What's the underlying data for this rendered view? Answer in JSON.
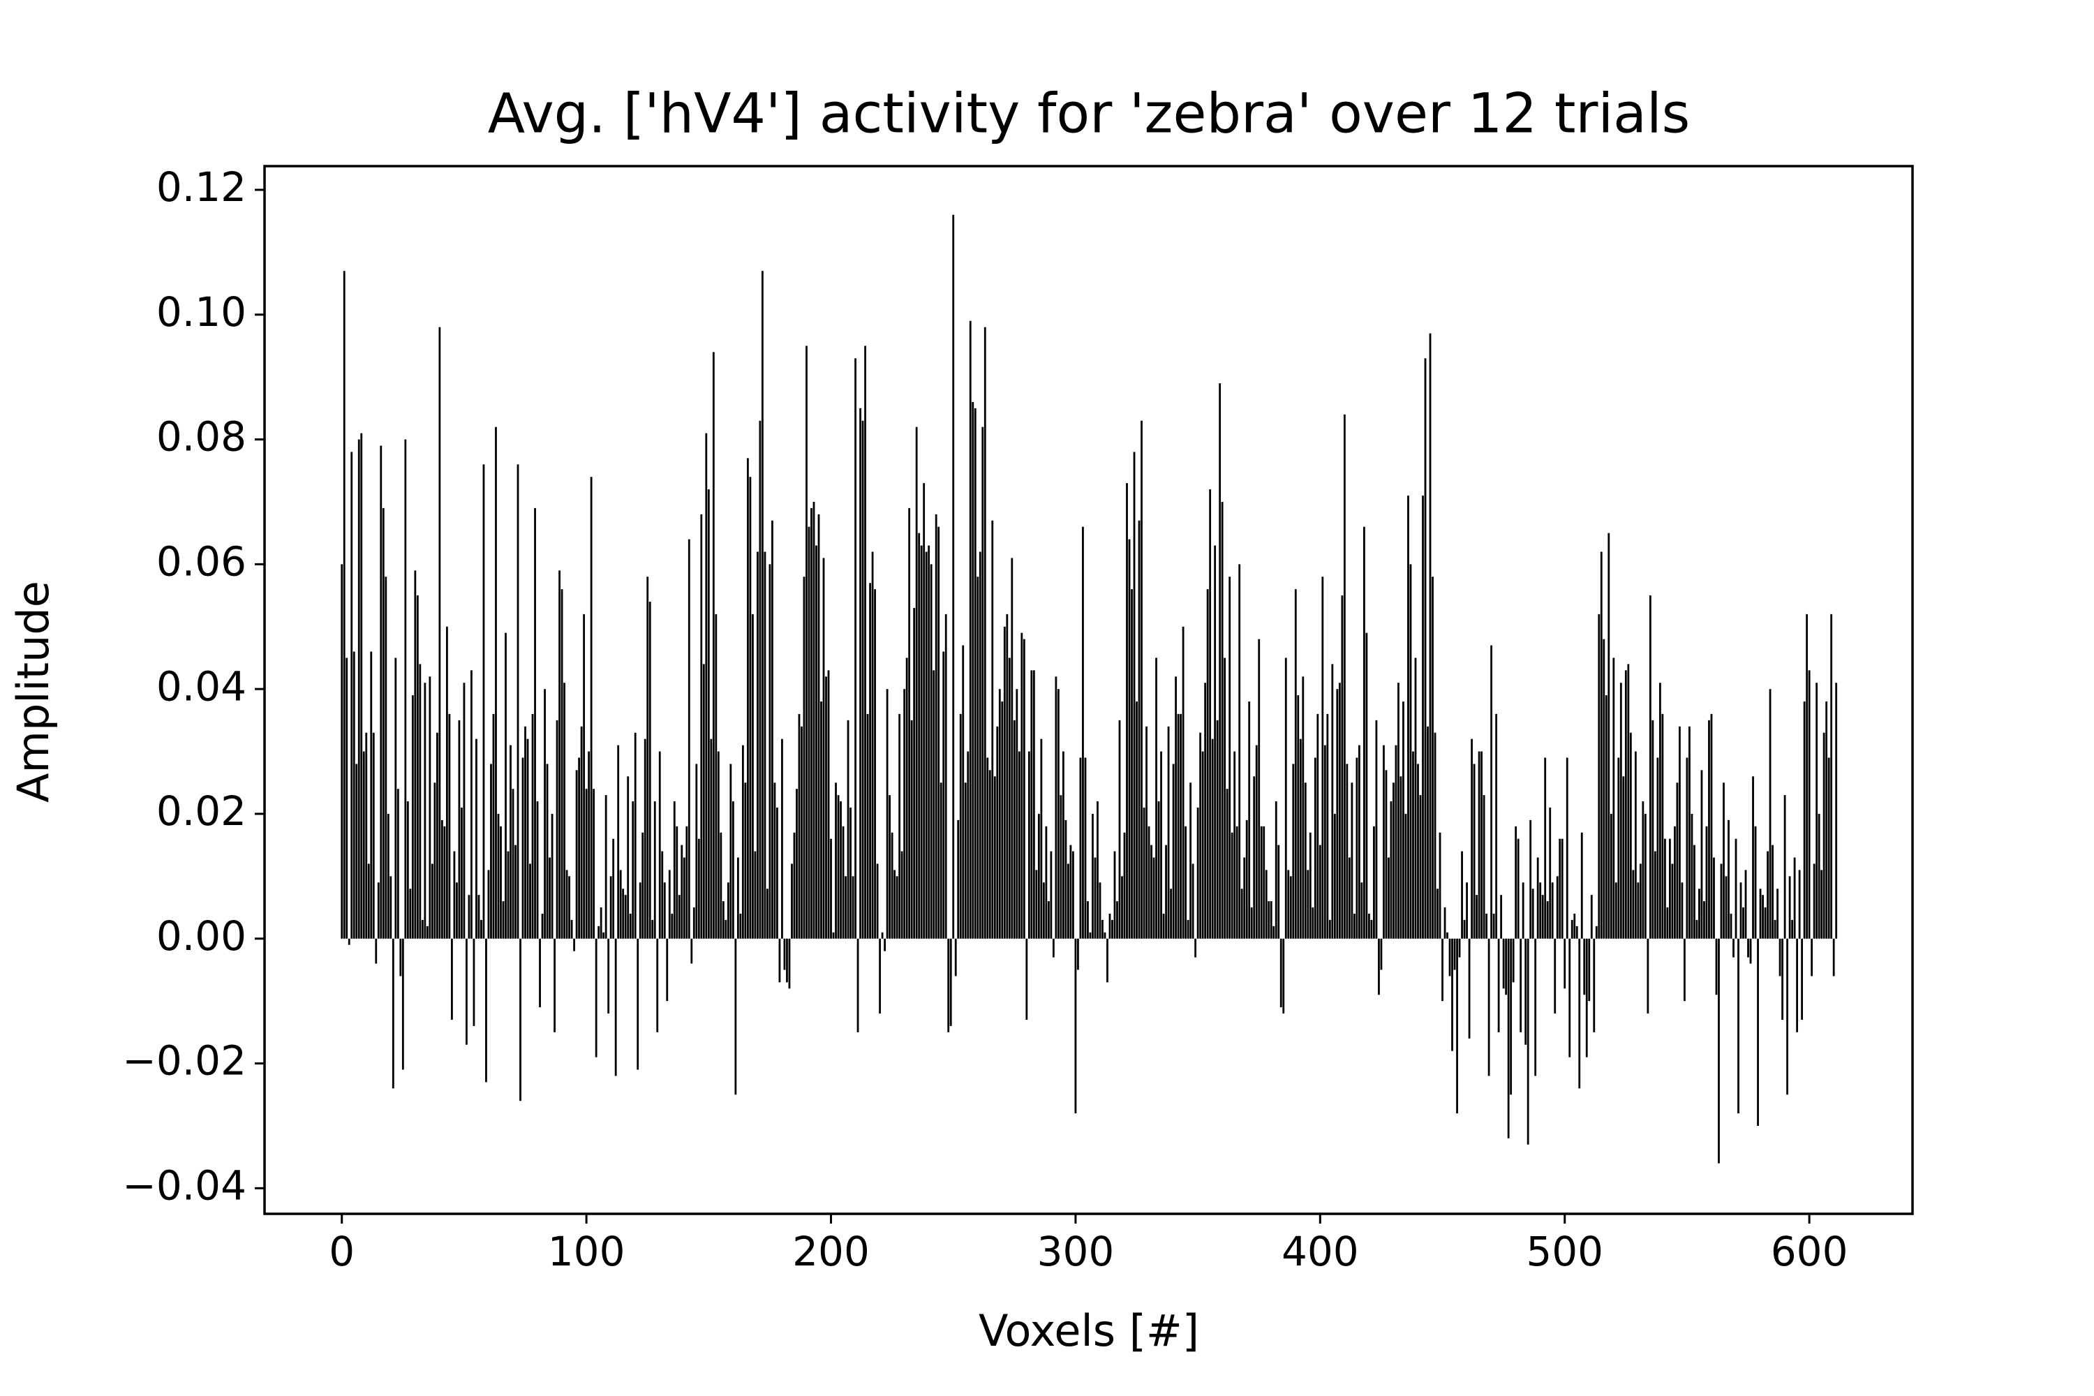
{
  "chart_data": {
    "type": "bar",
    "title": "Avg. ['hV4'] activity for 'zebra' over 12 trials",
    "xlabel": "Voxels [#]",
    "ylabel": "Amplitude",
    "color": "#000000",
    "xlim": [
      -31.6,
      642.2
    ],
    "ylim": [
      -0.0441,
      0.1238
    ],
    "xticks": [
      0,
      100,
      200,
      300,
      400,
      500,
      600
    ],
    "yticks": [
      {
        "value": -0.04,
        "label": "−0.04"
      },
      {
        "value": -0.02,
        "label": "−0.02"
      },
      {
        "value": 0,
        "label": "0.00"
      },
      {
        "value": 0.02,
        "label": "0.02"
      },
      {
        "value": 0.04,
        "label": "0.04"
      },
      {
        "value": 0.06,
        "label": "0.06"
      },
      {
        "value": 0.08,
        "label": "0.08"
      },
      {
        "value": 0.1,
        "label": "0.10"
      },
      {
        "value": 0.12,
        "label": "0.12"
      }
    ],
    "x": [
      0,
      1,
      2,
      3,
      4,
      5,
      6,
      7,
      8,
      9,
      10,
      11,
      12,
      13,
      14,
      15,
      16,
      17,
      18,
      19,
      20,
      21,
      22,
      23,
      24,
      25,
      26,
      27,
      28,
      29,
      30,
      31,
      32,
      33,
      34,
      35,
      36,
      37,
      38,
      39,
      40,
      41,
      42,
      43,
      44,
      45,
      46,
      47,
      48,
      49,
      50,
      51,
      52,
      53,
      54,
      55,
      56,
      57,
      58,
      59,
      60,
      61,
      62,
      63,
      64,
      65,
      66,
      67,
      68,
      69,
      70,
      71,
      72,
      73,
      74,
      75,
      76,
      77,
      78,
      79,
      80,
      81,
      82,
      83,
      84,
      85,
      86,
      87,
      88,
      89,
      90,
      91,
      92,
      93,
      94,
      95,
      96,
      97,
      98,
      99,
      100,
      101,
      102,
      103,
      104,
      105,
      106,
      107,
      108,
      109,
      110,
      111,
      112,
      113,
      114,
      115,
      116,
      117,
      118,
      119,
      120,
      121,
      122,
      123,
      124,
      125,
      126,
      127,
      128,
      129,
      130,
      131,
      132,
      133,
      134,
      135,
      136,
      137,
      138,
      139,
      140,
      141,
      142,
      143,
      144,
      145,
      146,
      147,
      148,
      149,
      150,
      151,
      152,
      153,
      154,
      155,
      156,
      157,
      158,
      159,
      160,
      161,
      162,
      163,
      164,
      165,
      166,
      167,
      168,
      169,
      170,
      171,
      172,
      173,
      174,
      175,
      176,
      177,
      178,
      179,
      180,
      181,
      182,
      183,
      184,
      185,
      186,
      187,
      188,
      189,
      190,
      191,
      192,
      193,
      194,
      195,
      196,
      197,
      198,
      199,
      200,
      201,
      202,
      203,
      204,
      205,
      206,
      207,
      208,
      209,
      210,
      211,
      212,
      213,
      214,
      215,
      216,
      217,
      218,
      219,
      220,
      221,
      222,
      223,
      224,
      225,
      226,
      227,
      228,
      229,
      230,
      231,
      232,
      233,
      234,
      235,
      236,
      237,
      238,
      239,
      240,
      241,
      242,
      243,
      244,
      245,
      246,
      247,
      248,
      249,
      250,
      251,
      252,
      253,
      254,
      255,
      256,
      257,
      258,
      259,
      260,
      261,
      262,
      263,
      264,
      265,
      266,
      267,
      268,
      269,
      270,
      271,
      272,
      273,
      274,
      275,
      276,
      277,
      278,
      279,
      280,
      281,
      282,
      283,
      284,
      285,
      286,
      287,
      288,
      289,
      290,
      291,
      292,
      293,
      294,
      295,
      296,
      297,
      298,
      299,
      300,
      301,
      302,
      303,
      304,
      305,
      306,
      307,
      308,
      309,
      310,
      311,
      312,
      313,
      314,
      315,
      316,
      317,
      318,
      319,
      320,
      321,
      322,
      323,
      324,
      325,
      326,
      327,
      328,
      329,
      330,
      331,
      332,
      333,
      334,
      335,
      336,
      337,
      338,
      339,
      340,
      341,
      342,
      343,
      344,
      345,
      346,
      347,
      348,
      349,
      350,
      351,
      352,
      353,
      354,
      355,
      356,
      357,
      358,
      359,
      360,
      361,
      362,
      363,
      364,
      365,
      366,
      367,
      368,
      369,
      370,
      371,
      372,
      373,
      374,
      375,
      376,
      377,
      378,
      379,
      380,
      381,
      382,
      383,
      384,
      385,
      386,
      387,
      388,
      389,
      390,
      391,
      392,
      393,
      394,
      395,
      396,
      397,
      398,
      399,
      400,
      401,
      402,
      403,
      404,
      405,
      406,
      407,
      408,
      409,
      410,
      411,
      412,
      413,
      414,
      415,
      416,
      417,
      418,
      419,
      420,
      421,
      422,
      423,
      424,
      425,
      426,
      427,
      428,
      429,
      430,
      431,
      432,
      433,
      434,
      435,
      436,
      437,
      438,
      439,
      440,
      441,
      442,
      443,
      444,
      445,
      446,
      447,
      448,
      449,
      450,
      451,
      452,
      453,
      454,
      455,
      456,
      457,
      458,
      459,
      460,
      461,
      462,
      463,
      464,
      465,
      466,
      467,
      468,
      469,
      470,
      471,
      472,
      473,
      474,
      475,
      476,
      477,
      478,
      479,
      480,
      481,
      482,
      483,
      484,
      485,
      486,
      487,
      488,
      489,
      490,
      491,
      492,
      493,
      494,
      495,
      496,
      497,
      498,
      499,
      500,
      501,
      502,
      503,
      504,
      505,
      506,
      507,
      508,
      509,
      510,
      511,
      512,
      513,
      514,
      515,
      516,
      517,
      518,
      519,
      520,
      521,
      522,
      523,
      524,
      525,
      526,
      527,
      528,
      529,
      530,
      531,
      532,
      533,
      534,
      535,
      536,
      537,
      538,
      539,
      540,
      541,
      542,
      543,
      544,
      545,
      546,
      547,
      548,
      549,
      550,
      551,
      552,
      553,
      554,
      555,
      556,
      557,
      558,
      559,
      560,
      561,
      562,
      563,
      564,
      565,
      566,
      567,
      568,
      569,
      570,
      571,
      572,
      573,
      574,
      575,
      576,
      577,
      578,
      579,
      580,
      581,
      582,
      583,
      584,
      585,
      586,
      587,
      588,
      589,
      590,
      591,
      592,
      593,
      594,
      595,
      596,
      597,
      598,
      599,
      600,
      601,
      602,
      603,
      604,
      605,
      606,
      607,
      608,
      609,
      610,
      611
    ],
    "values": [
      0.06,
      0.107,
      0.045,
      -0.001,
      0.078,
      0.046,
      0.028,
      0.08,
      0.081,
      0.03,
      0.033,
      0.012,
      0.046,
      0.033,
      -0.004,
      0.009,
      0.079,
      0.069,
      0.058,
      0.02,
      0.01,
      -0.024,
      0.045,
      0.024,
      -0.006,
      -0.021,
      0.08,
      0.022,
      0.008,
      0.039,
      0.059,
      0.055,
      0.044,
      0.003,
      0.041,
      0.002,
      0.042,
      0.012,
      0.025,
      0.033,
      0.098,
      0.019,
      0.018,
      0.05,
      0.036,
      -0.013,
      0.014,
      0.009,
      0.035,
      0.021,
      0.041,
      -0.017,
      0.007,
      0.043,
      -0.014,
      0.032,
      0.007,
      0.003,
      0.076,
      -0.023,
      0.011,
      0.028,
      0.036,
      0.082,
      0.02,
      0.018,
      0.006,
      0.049,
      0.014,
      0.031,
      0.024,
      0.015,
      0.076,
      -0.026,
      0.029,
      0.034,
      0.032,
      0.012,
      0.036,
      0.069,
      0.022,
      -0.011,
      0.004,
      0.04,
      0.028,
      0.013,
      0.02,
      -0.015,
      0.035,
      0.059,
      0.056,
      0.041,
      0.011,
      0.01,
      0.003,
      -0.002,
      0.027,
      0.029,
      0.034,
      0.052,
      0.024,
      0.03,
      0.074,
      0.024,
      -0.019,
      0.002,
      0.005,
      0.001,
      0.023,
      -0.012,
      0.01,
      0.016,
      -0.022,
      0.031,
      0.011,
      0.008,
      0.007,
      0.026,
      0.004,
      0.022,
      0.033,
      -0.021,
      0.009,
      0.017,
      0.032,
      0.058,
      0.054,
      0.003,
      0.022,
      -0.015,
      0.03,
      0.014,
      0.009,
      -0.01,
      0.011,
      0.004,
      0.022,
      0.018,
      0.007,
      0.015,
      0.013,
      0.018,
      0.064,
      -0.004,
      0.005,
      0.028,
      0.016,
      0.068,
      0.044,
      0.081,
      0.072,
      0.032,
      0.094,
      0.052,
      0.03,
      0.017,
      0.006,
      0.003,
      0.009,
      0.028,
      0.022,
      -0.025,
      0.013,
      0.004,
      0.031,
      0.025,
      0.077,
      0.074,
      0.052,
      0.014,
      0.062,
      0.083,
      0.107,
      0.062,
      0.008,
      0.06,
      0.067,
      0.025,
      0.021,
      -0.007,
      0.032,
      -0.005,
      -0.007,
      -0.008,
      0.012,
      0.017,
      0.024,
      0.036,
      0.034,
      0.058,
      0.095,
      0.066,
      0.069,
      0.07,
      0.063,
      0.068,
      0.038,
      0.061,
      0.042,
      0.043,
      0.016,
      0.001,
      0.025,
      0.023,
      0.022,
      0.018,
      0.01,
      0.035,
      0.021,
      0.01,
      0.093,
      -0.015,
      0.085,
      0.083,
      0.095,
      0.036,
      0.057,
      0.062,
      0.056,
      0.012,
      -0.012,
      0.001,
      -0.002,
      0.04,
      0.023,
      0.017,
      0.011,
      0.01,
      0.036,
      0.014,
      0.04,
      0.045,
      0.069,
      0.035,
      0.053,
      0.082,
      0.065,
      0.063,
      0.073,
      0.062,
      0.063,
      0.06,
      0.043,
      0.068,
      0.066,
      0.025,
      0.046,
      0.052,
      -0.015,
      -0.014,
      0.116,
      -0.006,
      0.019,
      0.036,
      0.047,
      0.025,
      0.03,
      0.099,
      0.086,
      0.085,
      0.058,
      0.062,
      0.082,
      0.098,
      0.029,
      0.027,
      0.067,
      0.026,
      0.034,
      0.04,
      0.038,
      0.05,
      0.052,
      0.045,
      0.061,
      0.035,
      0.04,
      0.03,
      0.049,
      0.048,
      -0.013,
      0.03,
      0.043,
      0.043,
      0.011,
      0.02,
      0.032,
      0.009,
      0.018,
      0.006,
      0.014,
      -0.003,
      0.042,
      0.04,
      0.023,
      0.03,
      0.019,
      0.012,
      0.015,
      0.014,
      -0.028,
      -0.005,
      0.029,
      0.066,
      0.029,
      0.006,
      0.001,
      0.02,
      0.013,
      0.022,
      0.009,
      0.003,
      0.001,
      -0.007,
      0.004,
      0.003,
      0.014,
      0.006,
      0.035,
      0.01,
      0.017,
      0.073,
      0.064,
      0.056,
      0.078,
      0.038,
      0.067,
      0.083,
      0.021,
      0.034,
      0.018,
      0.015,
      0.013,
      0.045,
      0.022,
      0.03,
      0.004,
      0.015,
      0.034,
      0.008,
      0.028,
      0.042,
      0.036,
      0.036,
      0.05,
      0.018,
      0.003,
      0.025,
      0.012,
      -0.003,
      0.021,
      0.033,
      0.03,
      0.041,
      0.056,
      0.072,
      0.032,
      0.063,
      0.035,
      0.089,
      0.07,
      0.045,
      0.024,
      0.058,
      0.017,
      0.03,
      0.018,
      0.06,
      0.008,
      0.013,
      0.019,
      0.038,
      0.005,
      0.026,
      0.031,
      0.048,
      0.018,
      0.018,
      0.011,
      0.006,
      0.006,
      0.002,
      0.022,
      0.015,
      -0.011,
      -0.012,
      0.045,
      0.011,
      0.01,
      0.028,
      0.056,
      0.039,
      0.032,
      0.042,
      0.025,
      0.011,
      0.017,
      0.005,
      0.029,
      0.036,
      0.015,
      0.058,
      0.031,
      0.036,
      0.003,
      0.044,
      0.02,
      0.04,
      0.041,
      0.055,
      0.084,
      0.028,
      0.013,
      0.025,
      0.004,
      0.029,
      0.031,
      0.009,
      0.066,
      0.049,
      0.004,
      0.003,
      0.018,
      0.035,
      -0.009,
      -0.005,
      0.031,
      0.027,
      0.013,
      0.022,
      0.025,
      0.031,
      0.041,
      0.026,
      0.038,
      0.02,
      0.071,
      0.06,
      0.03,
      0.045,
      0.028,
      0.023,
      0.071,
      0.093,
      0.034,
      0.097,
      0.058,
      0.033,
      0.008,
      0.017,
      -0.01,
      0.005,
      0.001,
      -0.006,
      -0.018,
      -0.005,
      -0.028,
      -0.003,
      0.014,
      0.003,
      0.009,
      -0.016,
      0.032,
      0.028,
      0.007,
      0.03,
      0.03,
      0.023,
      0.004,
      -0.022,
      0.047,
      0.004,
      0.036,
      -0.015,
      0.007,
      -0.008,
      -0.009,
      -0.032,
      -0.025,
      -0.007,
      0.018,
      0.016,
      -0.015,
      0.009,
      -0.017,
      -0.033,
      0.019,
      0.008,
      -0.022,
      0.013,
      0.009,
      0.007,
      0.029,
      0.006,
      0.021,
      0.009,
      -0.012,
      0.01,
      0.016,
      0.016,
      -0.008,
      0.029,
      -0.019,
      0.003,
      0.004,
      0.002,
      -0.024,
      0.017,
      -0.009,
      -0.019,
      -0.01,
      0.007,
      -0.015,
      0.002,
      0.052,
      0.062,
      0.048,
      0.039,
      0.065,
      0.02,
      0.045,
      0.009,
      0.029,
      0.041,
      0.026,
      0.043,
      0.044,
      0.033,
      0.011,
      0.03,
      0.009,
      0.012,
      0.022,
      0.02,
      -0.012,
      0.055,
      0.035,
      0.014,
      0.029,
      0.041,
      0.036,
      0.016,
      0.005,
      0.016,
      0.012,
      0.018,
      0.025,
      0.034,
      0.009,
      -0.01,
      0.029,
      0.034,
      0.02,
      0.015,
      0.003,
      0.008,
      0.027,
      0.006,
      0.018,
      0.035,
      0.036,
      0.013,
      -0.009,
      -0.036,
      0.012,
      0.025,
      0.01,
      0.019,
      0.004,
      -0.003,
      0.016,
      -0.028,
      0.009,
      0.005,
      0.011,
      -0.003,
      -0.004,
      0.026,
      0.018,
      -0.03,
      0.008,
      0.007,
      0.005,
      0.014,
      0.04,
      0.015,
      0.003,
      0.008,
      -0.006,
      -0.013,
      0.023,
      -0.025,
      0.01,
      0.003,
      0.013,
      -0.015,
      0.011,
      -0.013,
      0.038,
      0.052,
      0.043,
      -0.006,
      0.012,
      0.041,
      0.02,
      0.011,
      0.033,
      0.038,
      0.029,
      0.052,
      -0.006,
      0.041
    ]
  }
}
